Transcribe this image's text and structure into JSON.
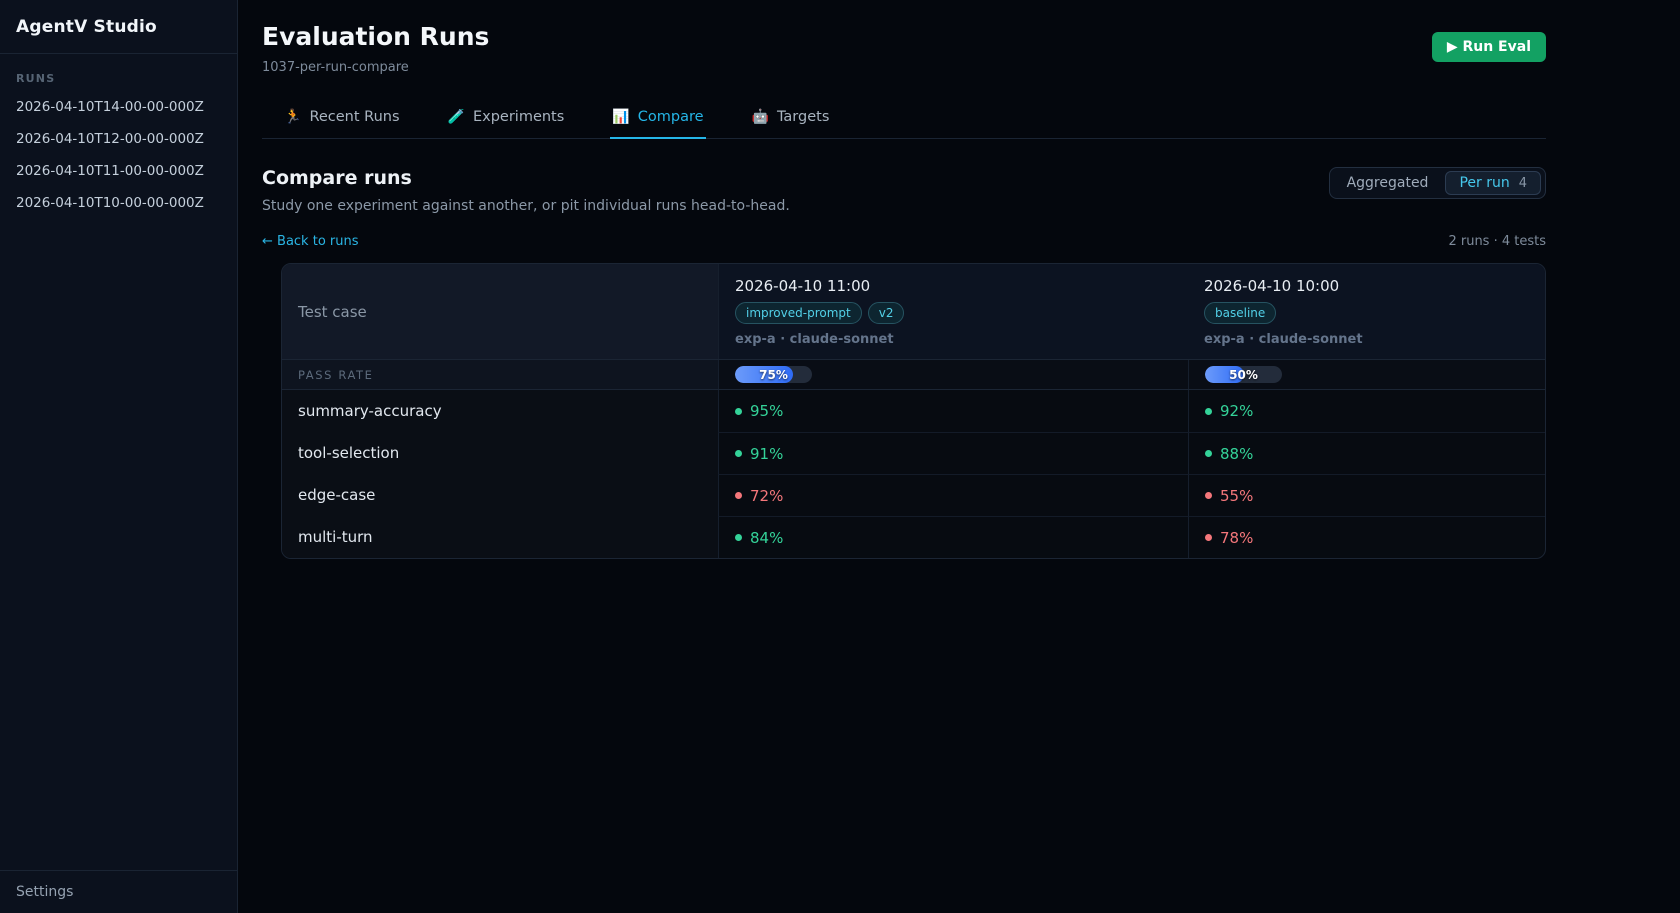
{
  "app": {
    "title": "AgentV Studio"
  },
  "sidebar": {
    "section_label": "RUNS",
    "runs": [
      "2026-04-10T14-00-00-000Z",
      "2026-04-10T12-00-00-000Z",
      "2026-04-10T11-00-00-000Z",
      "2026-04-10T10-00-00-000Z"
    ],
    "settings_label": "Settings"
  },
  "header": {
    "title": "Evaluation Runs",
    "subtitle": "1037-per-run-compare",
    "run_eval": {
      "icon": "▶",
      "label": "Run Eval",
      "color": "#13a163"
    }
  },
  "tabs": [
    {
      "icon": "🏃",
      "name": "recent-runs",
      "label": "Recent Runs",
      "active": false
    },
    {
      "icon": "🧪",
      "name": "experiments",
      "label": "Experiments",
      "active": false
    },
    {
      "icon": "📊",
      "name": "compare",
      "label": "Compare",
      "active": true
    },
    {
      "icon": "🤖",
      "name": "targets",
      "label": "Targets",
      "active": false
    }
  ],
  "compare": {
    "title": "Compare runs",
    "description": "Study one experiment against another, or pit individual runs head-to-head.",
    "toggle": [
      {
        "label": "Aggregated",
        "active": false,
        "badge": ""
      },
      {
        "label": "Per run",
        "active": true,
        "badge": "4"
      }
    ],
    "back_link": "← Back to runs",
    "summary": "2 runs · 4 tests",
    "accent_color": "#25b6e8"
  },
  "table": {
    "first_column_header": "Test case",
    "pass_rate_label": "PASS RATE",
    "runs": [
      {
        "datetime": "2026-04-10 11:00",
        "tags": [
          "improved-prompt",
          "v2"
        ],
        "meta": "exp-a · claude-sonnet",
        "pass_rate_pct": 75,
        "pass_rate_label": "75%"
      },
      {
        "datetime": "2026-04-10 10:00",
        "tags": [
          "baseline"
        ],
        "meta": "exp-a · claude-sonnet",
        "pass_rate_pct": 50,
        "pass_rate_label": "50%"
      }
    ],
    "rows": [
      {
        "test": "summary-accuracy",
        "values": [
          {
            "pct": "95%",
            "status": "pass"
          },
          {
            "pct": "92%",
            "status": "pass"
          }
        ]
      },
      {
        "test": "tool-selection",
        "values": [
          {
            "pct": "91%",
            "status": "pass"
          },
          {
            "pct": "88%",
            "status": "pass"
          }
        ]
      },
      {
        "test": "edge-case",
        "values": [
          {
            "pct": "72%",
            "status": "fail"
          },
          {
            "pct": "55%",
            "status": "fail"
          }
        ]
      },
      {
        "test": "multi-turn",
        "values": [
          {
            "pct": "84%",
            "status": "pass"
          },
          {
            "pct": "78%",
            "status": "fail"
          }
        ]
      }
    ],
    "status_colors": {
      "pass": "#34d399",
      "fail": "#f4777b",
      "bar_fill": "#2e6bf6"
    }
  }
}
